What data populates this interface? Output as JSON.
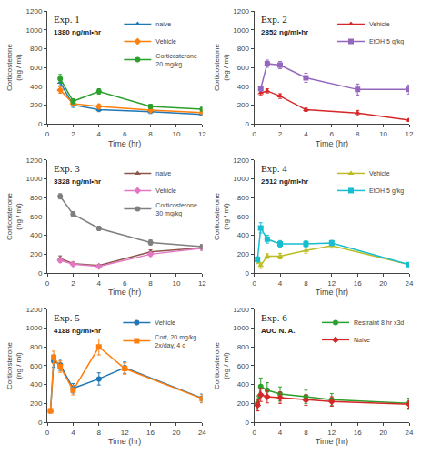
{
  "chart_data": [
    {
      "type": "line",
      "title": "Exp. 1",
      "xlabel": "Time (hr)",
      "ylabel": "Corticosterone\n(ng / ml)",
      "annotations": [
        "1380 ng/ml•hr"
      ],
      "x": [
        1,
        2,
        4,
        8,
        12
      ],
      "xlim": [
        0,
        12
      ],
      "xticks": [
        0,
        2,
        4,
        6,
        8,
        10,
        12
      ],
      "ylim": [
        0,
        1200
      ],
      "yticks": [
        0,
        200,
        400,
        600,
        800,
        1000,
        1200
      ],
      "grid": false,
      "legend": "upper right",
      "series": [
        {
          "name": "naive",
          "marker": "triangle-up",
          "values": [
            440,
            200,
            150,
            130,
            100
          ],
          "yerr": [
            35,
            25,
            20,
            20,
            15
          ]
        },
        {
          "name": "Vehicle",
          "marker": "diamond",
          "values": [
            360,
            215,
            185,
            145,
            120
          ],
          "yerr": [
            35,
            25,
            20,
            18,
            12
          ]
        },
        {
          "name": "Corticosterone\n20 mg/kg",
          "marker": "circle",
          "values": [
            480,
            240,
            345,
            185,
            155
          ],
          "yerr": [
            45,
            28,
            28,
            22,
            18
          ]
        }
      ]
    },
    {
      "type": "line",
      "title": "Exp. 2",
      "xlabel": "Time (hr)",
      "ylabel": "Corticosterone\n(ng / ml)",
      "annotations": [
        "2852 ng/ml•hr"
      ],
      "x": [
        0.5,
        1,
        2,
        4,
        8,
        12
      ],
      "xlim": [
        0,
        12
      ],
      "xticks": [
        0,
        2,
        4,
        6,
        8,
        10,
        12
      ],
      "ylim": [
        0,
        1200
      ],
      "yticks": [
        0,
        200,
        400,
        600,
        800,
        1000,
        1200
      ],
      "grid": false,
      "legend": "upper right",
      "series": [
        {
          "name": "Vehicle",
          "marker": "triangle-up",
          "values": [
            330,
            350,
            295,
            150,
            115,
            40
          ],
          "yerr": [
            28,
            22,
            25,
            18,
            28,
            15
          ]
        },
        {
          "name": "EtOH 5 g/kg",
          "marker": "square",
          "values": [
            375,
            640,
            625,
            490,
            365,
            365
          ],
          "yerr": [
            28,
            38,
            38,
            48,
            58,
            48
          ]
        }
      ]
    },
    {
      "type": "line",
      "title": "Exp. 3",
      "xlabel": "Time (hr)",
      "ylabel": "Corticosterone\n(ng / ml)",
      "annotations": [
        "3328 ng/ml•hr"
      ],
      "x": [
        1,
        2,
        4,
        8,
        12
      ],
      "xlim": [
        0,
        12
      ],
      "xticks": [
        0,
        2,
        4,
        6,
        8,
        10,
        12
      ],
      "ylim": [
        0,
        1200
      ],
      "yticks": [
        0,
        200,
        400,
        600,
        800,
        1000,
        1200
      ],
      "grid": false,
      "legend": "upper right",
      "series": [
        {
          "name": "naive",
          "marker": "triangle-up",
          "values": [
            155,
            100,
            80,
            225,
            270
          ],
          "yerr": [
            28,
            18,
            12,
            22,
            28
          ]
        },
        {
          "name": "Vehicle",
          "marker": "diamond",
          "values": [
            135,
            95,
            70,
            200,
            265
          ],
          "yerr": [
            22,
            12,
            8,
            18,
            22
          ]
        },
        {
          "name": "Corticosterone\n30 mg/kg",
          "marker": "circle",
          "values": [
            815,
            625,
            475,
            325,
            282
          ],
          "yerr": [
            28,
            28,
            22,
            28,
            22
          ]
        }
      ]
    },
    {
      "type": "line",
      "title": "Exp. 4",
      "xlabel": "Time (hr)",
      "ylabel": "Corticosterone\n(ng / ml)",
      "annotations": [
        "2512 ng/ml•hr"
      ],
      "x": [
        0.5,
        1,
        2,
        4,
        8,
        12,
        24
      ],
      "xlim": [
        0,
        24
      ],
      "xticks": [
        0,
        4,
        8,
        12,
        16,
        20,
        24
      ],
      "ylim": [
        0,
        1200
      ],
      "yticks": [
        0,
        200,
        400,
        600,
        800,
        1000,
        1200
      ],
      "grid": false,
      "legend": "upper right",
      "series": [
        {
          "name": "Vehicle",
          "marker": "triangle-up",
          "values": [
            130,
            80,
            180,
            180,
            240,
            290,
            90
          ],
          "yerr": [
            30,
            30,
            25,
            30,
            28,
            25,
            18
          ]
        },
        {
          "name": "EtOH 5 g/kg",
          "marker": "square",
          "values": [
            145,
            480,
            360,
            310,
            310,
            320,
            90
          ],
          "yerr": [
            28,
            55,
            42,
            35,
            32,
            28,
            18
          ]
        }
      ]
    },
    {
      "type": "line",
      "title": "Exp. 5",
      "xlabel": "Time (hr)",
      "ylabel": "Corticosterone\n(ng / ml)",
      "annotations": [
        "4188 ng/ml•hr"
      ],
      "x": [
        0.5,
        1,
        2,
        4,
        8,
        12,
        24
      ],
      "xlim": [
        0,
        24
      ],
      "xticks": [
        0,
        4,
        8,
        12,
        16,
        20,
        24
      ],
      "ylim": [
        0,
        1200
      ],
      "yticks": [
        0,
        200,
        400,
        600,
        800,
        1000,
        1200
      ],
      "grid": false,
      "legend": "upper right",
      "series": [
        {
          "name": "Vehicle",
          "marker": "circle",
          "values": [
            120,
            650,
            610,
            360,
            460,
            580,
            255
          ],
          "yerr": [
            20,
            65,
            60,
            50,
            65,
            60,
            45
          ]
        },
        {
          "name": "Cort, 20 mg/kg\n2x/day, 4 d",
          "marker": "square",
          "values": [
            120,
            690,
            590,
            340,
            800,
            570,
            250
          ],
          "yerr": [
            20,
            65,
            60,
            50,
            85,
            60,
            45
          ]
        }
      ]
    },
    {
      "type": "line",
      "title": "Exp. 6",
      "xlabel": "Time (hr)",
      "ylabel": "Corticosterone\n(ng / ml)",
      "annotations": [
        "AUC N. A."
      ],
      "x": [
        0.5,
        1,
        2,
        4,
        8,
        12,
        24
      ],
      "xlim": [
        0,
        24
      ],
      "xticks": [
        0,
        4,
        8,
        12,
        16,
        20,
        24
      ],
      "ylim": [
        0,
        1200
      ],
      "yticks": [
        0,
        200,
        400,
        600,
        800,
        1000,
        1200
      ],
      "grid": false,
      "legend": "upper right",
      "series": [
        {
          "name": "Restraint 8 hr x3d",
          "marker": "circle",
          "values": [
            200,
            380,
            340,
            300,
            270,
            240,
            200
          ],
          "yerr": [
            80,
            90,
            80,
            75,
            70,
            65,
            55
          ]
        },
        {
          "name": "Naive",
          "marker": "diamond",
          "values": [
            180,
            290,
            270,
            260,
            235,
            220,
            190
          ],
          "yerr": [
            60,
            70,
            65,
            60,
            55,
            50,
            40
          ]
        }
      ]
    }
  ]
}
